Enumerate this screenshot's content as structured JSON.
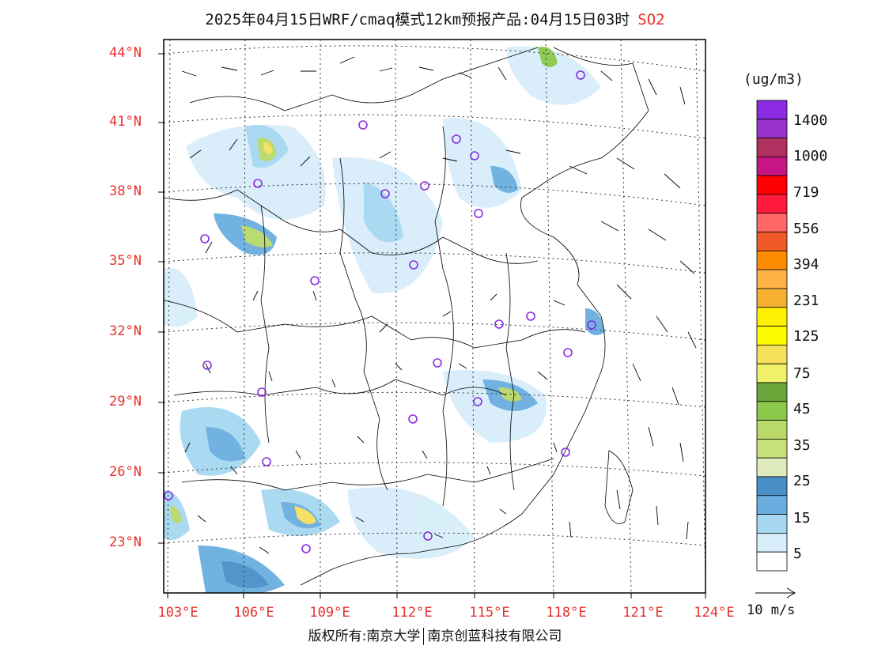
{
  "title": {
    "main": "2025年04月15日WRF/cmaq模式12km预报产品:04月15日03时",
    "pollutant": "SO2"
  },
  "map": {
    "lat_labels": [
      "44°N",
      "41°N",
      "38°N",
      "35°N",
      "32°N",
      "29°N",
      "26°N",
      "23°N"
    ],
    "lon_labels": [
      "103°E",
      "106°E",
      "109°E",
      "112°E",
      "115°E",
      "118°E",
      "121°E",
      "124°E"
    ],
    "colors": {
      "label": "#e8302c",
      "frame": "#000000",
      "marker": "#8a2be2"
    }
  },
  "legend": {
    "unit": "(ug/m3)",
    "labels": [
      "1400",
      "1000",
      "719",
      "556",
      "394",
      "231",
      "125",
      "75",
      "45",
      "35",
      "25",
      "15",
      "5"
    ],
    "colors": [
      "#8a2be2",
      "#9932cc",
      "#b03060",
      "#c71585",
      "#ff0000",
      "#ff1a3c",
      "#ff6666",
      "#f05a28",
      "#ff8c00",
      "#ffb347",
      "#f5b031",
      "#ffef00",
      "#fffb00",
      "#f5e05c",
      "#f0f06a",
      "#6aa73a",
      "#8cc94a",
      "#b9d96b",
      "#c7e07a",
      "#dfebbc",
      "#4a90c8",
      "#6aaedf",
      "#a6d8f2",
      "#d7eefa",
      "#ffffff"
    ],
    "vector_label": "10 m/s"
  },
  "footer": {
    "left": "版权所有:南京大学",
    "right": "南京创蓝科技有限公司"
  }
}
